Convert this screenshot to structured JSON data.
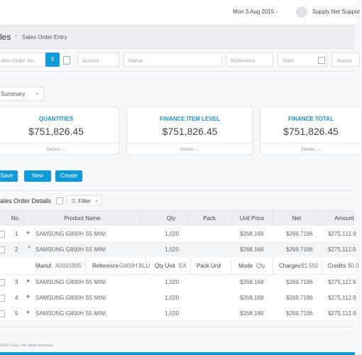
{
  "header": {
    "date": "Mon 3 Aug 2015",
    "user": "Supply Net Suppor"
  },
  "breadcrumb": {
    "section": "les",
    "page": "Sales Order Entry"
  },
  "filters": {
    "order_no": "ales Order No.",
    "account": "Acount",
    "name": "Name",
    "reference": "Reference",
    "date": "Date",
    "status": "Status"
  },
  "summary_select": "Summary",
  "cards": [
    {
      "title": "QUANTITIES",
      "value": "$751,826.45",
      "link": "Details"
    },
    {
      "title": "FINANCE ITEM LEVEL",
      "value": "$751,826.45",
      "link": "Details"
    },
    {
      "title": "FINANCE TOTAL",
      "value": "$751,826.45",
      "link": "Details"
    }
  ],
  "buttons": [
    "Save",
    "New",
    "Create"
  ],
  "details": {
    "title": "ales Order Details",
    "filter": "Filter"
  },
  "table": {
    "columns": [
      "No.",
      "Product Name",
      "Qty",
      "Pack",
      "Unit Price",
      "Net",
      "Amount"
    ],
    "rows": [
      {
        "no": "1",
        "product": "SAMSUNG G800H S5 MINI",
        "qty": "1,020",
        "unit_price": "$268.168",
        "net": "$269.7186",
        "amount": "$275,112.9"
      },
      {
        "no": "2",
        "product": "SAMSUNG G800H S5 MINI",
        "qty": "1,020",
        "unit_price": "$268.168",
        "net": "$269.7186",
        "amount": "$275,112.9"
      },
      {
        "no": "3",
        "product": "SAMSUNG G800H S5 MINI",
        "qty": "1,020",
        "unit_price": "$268.168",
        "net": "$269.7186",
        "amount": "$275,112.9"
      },
      {
        "no": "4",
        "product": "SAMSUNG G800H S5 MINI",
        "qty": "1,020",
        "unit_price": "$268.168",
        "net": "$269.7186",
        "amount": "$275,112.9"
      },
      {
        "no": "5",
        "product": "SAMSUNG G800H S5 MINI",
        "qty": "1,020",
        "unit_price": "$268.168",
        "net": "$269.7186",
        "amount": "$275,112.9"
      }
    ],
    "expanded": [
      [
        "Manuf.",
        "A0015905"
      ],
      [
        "Reference",
        "G800H BLU"
      ],
      [
        "Qty Unit",
        "EA"
      ],
      [
        "Pack Unit"
      ],
      [
        "Mode",
        "Qty"
      ],
      [
        "Charges",
        "$1.550"
      ],
      [
        "Credits",
        "$0.0"
      ]
    ]
  },
  "footer": "2015 Trace. All rights reserved."
}
